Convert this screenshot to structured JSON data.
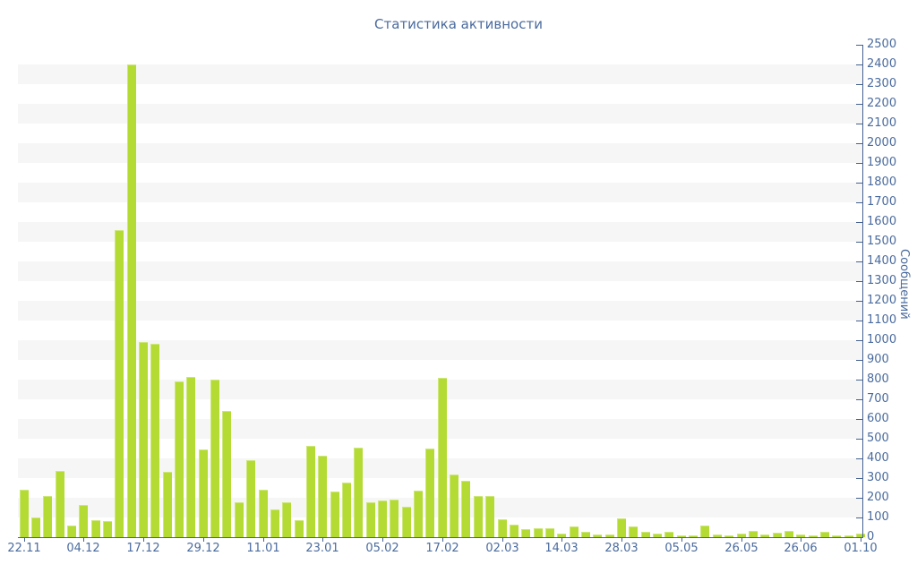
{
  "chart_data": {
    "type": "bar",
    "title": "Статистика активности",
    "xlabel": "",
    "ylabel": "Сообщений",
    "ylim": [
      0,
      2500
    ],
    "y_tick_step": 100,
    "y_tick_labels": [
      "0",
      "100",
      "200",
      "300",
      "400",
      "500",
      "600",
      "700",
      "800",
      "900",
      "1000",
      "1100",
      "1200",
      "1300",
      "1400",
      "1500",
      "1600",
      "1700",
      "1800",
      "1900",
      "2000",
      "2100",
      "2200",
      "2300",
      "2400",
      "2500"
    ],
    "x_tick_labels": [
      "22.11",
      "04.12",
      "17.12",
      "29.12",
      "11.01",
      "23.01",
      "05.02",
      "17.02",
      "02.03",
      "14.03",
      "28.03",
      "05.05",
      "26.05",
      "26.06",
      "01.10"
    ],
    "x_tick_every": 5,
    "values": [
      240,
      100,
      210,
      335,
      60,
      165,
      85,
      80,
      1560,
      2400,
      990,
      980,
      330,
      790,
      815,
      445,
      800,
      640,
      175,
      390,
      240,
      140,
      175,
      85,
      465,
      415,
      230,
      275,
      455,
      175,
      185,
      190,
      155,
      235,
      450,
      810,
      320,
      285,
      210,
      210,
      90,
      65,
      40,
      45,
      45,
      20,
      55,
      25,
      12,
      15,
      95,
      55,
      25,
      20,
      25,
      10,
      8,
      58,
      15,
      10,
      17,
      30,
      15,
      22,
      30,
      15,
      10,
      25,
      10,
      10,
      20
    ],
    "legend": "none",
    "grid": "alternating horizontal bands of 100 units",
    "colors": {
      "bar": "#b3db34",
      "axis": "#45618f",
      "text": "#4a6b9e",
      "stripe": "#f6f6f7",
      "background": "#ffffff"
    }
  }
}
